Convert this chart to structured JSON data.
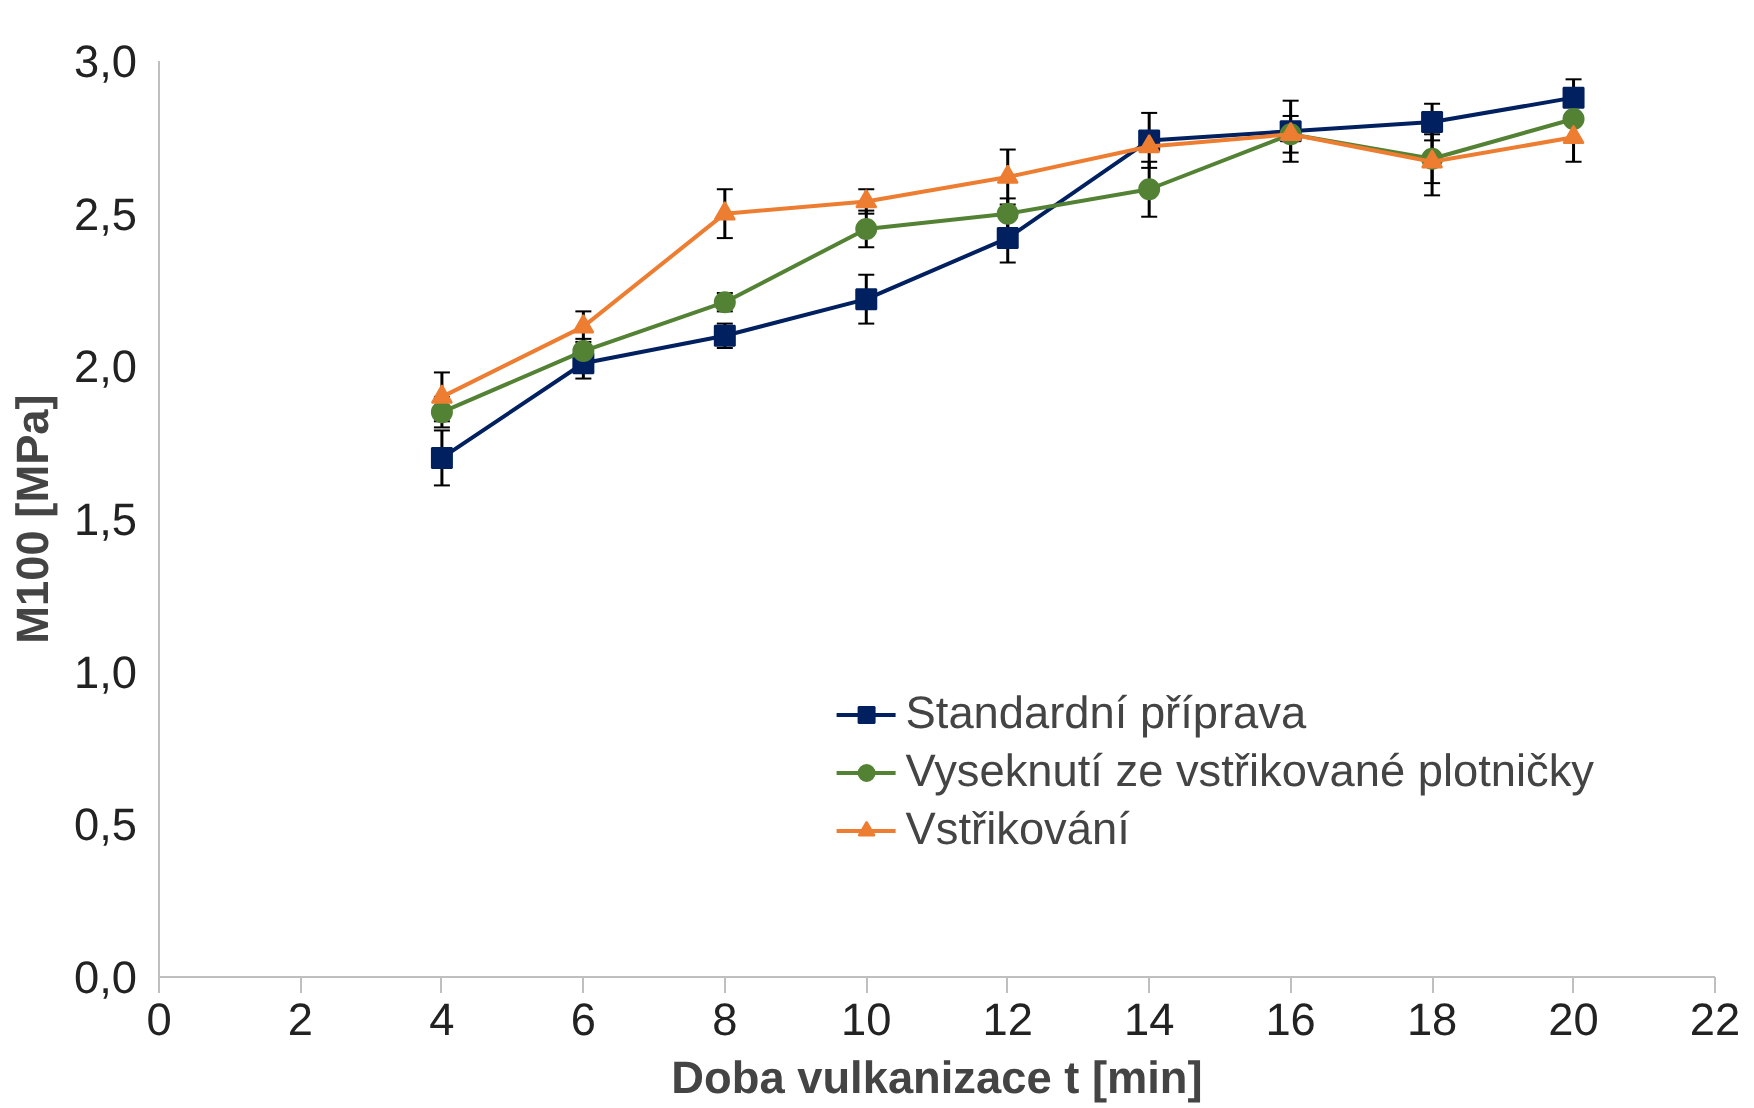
{
  "chart_data": {
    "type": "line",
    "xlabel": "Doba vulkanizace t [min]",
    "ylabel": "M100 [MPa]",
    "x": [
      4,
      6,
      8,
      10,
      12,
      14,
      16,
      18,
      20
    ],
    "series": [
      {
        "name": "Standardní příprava",
        "color": "#002060",
        "marker": "square",
        "values": [
          1.7,
          2.01,
          2.1,
          2.22,
          2.42,
          2.74,
          2.77,
          2.8,
          2.88
        ],
        "errors": [
          0.09,
          0.05,
          0.04,
          0.08,
          0.08,
          0.09,
          0.1,
          0.06,
          0.06
        ]
      },
      {
        "name": "Vyseknutí ze vstřikované plotničky",
        "color": "#548235",
        "marker": "circle",
        "values": [
          1.85,
          2.05,
          2.21,
          2.45,
          2.5,
          2.58,
          2.76,
          2.68,
          2.81
        ],
        "errors": [
          0.05,
          0.04,
          0.03,
          0.06,
          0.05,
          0.09,
          null,
          0.08,
          null
        ]
      },
      {
        "name": "Vstřikování",
        "color": "#ed7d31",
        "marker": "triangle",
        "values": [
          1.9,
          2.13,
          2.5,
          2.54,
          2.62,
          2.72,
          2.76,
          2.67,
          2.75
        ],
        "errors": [
          0.08,
          0.05,
          0.08,
          0.04,
          0.09,
          null,
          0.06,
          0.11,
          0.08
        ]
      }
    ],
    "xlim": [
      0,
      22
    ],
    "xticks": [
      0,
      2,
      4,
      6,
      8,
      10,
      12,
      14,
      16,
      18,
      20,
      22
    ],
    "ylim": [
      0,
      3
    ],
    "yticks": [
      {
        "value": 0,
        "label": "0,0"
      },
      {
        "value": 0.5,
        "label": "0,5"
      },
      {
        "value": 1,
        "label": "1,0"
      },
      {
        "value": 1.5,
        "label": "1,5"
      },
      {
        "value": 2,
        "label": "2,0"
      },
      {
        "value": 2.5,
        "label": "2,5"
      },
      {
        "value": 3,
        "label": "3,0"
      }
    ],
    "grid": false,
    "legend": "bottom right"
  }
}
